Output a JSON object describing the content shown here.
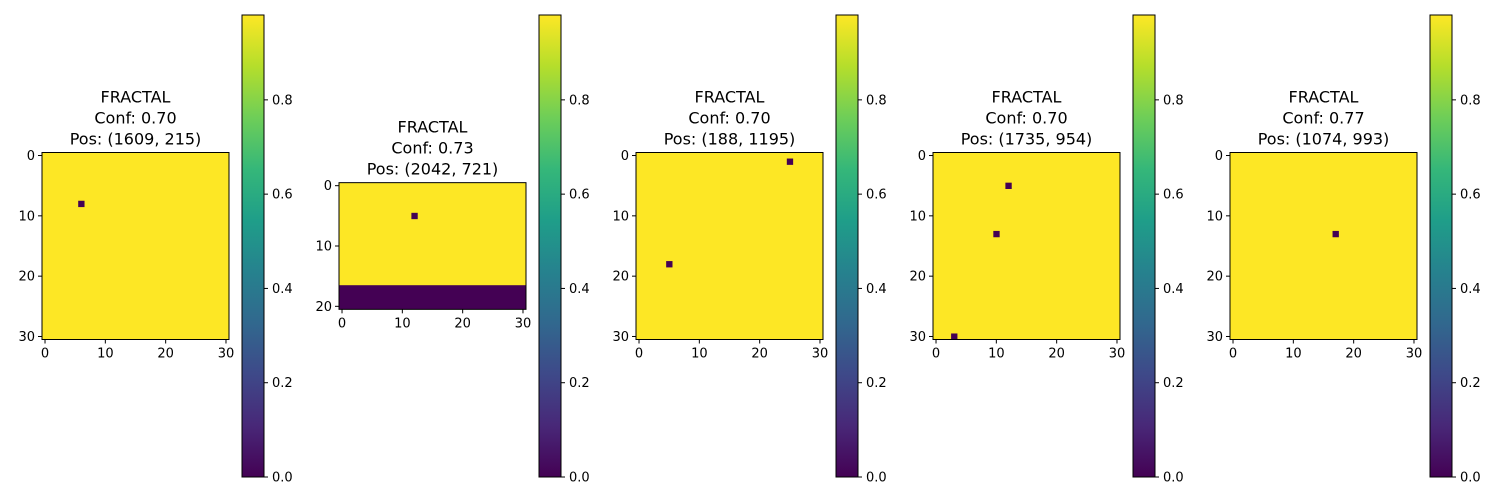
{
  "chart_data": [
    {
      "type": "heatmap",
      "title_lines": [
        "FRACTAL",
        "Conf: 0.70",
        "Pos: (1609, 215)"
      ],
      "label": "FRACTAL",
      "confidence": 0.7,
      "position": [
        1609,
        215
      ],
      "rows": 31,
      "cols": 31,
      "fill_value": 1,
      "zero_cells": [
        {
          "row": 8,
          "col": 6
        }
      ],
      "zero_row_bands": [],
      "xticks": [
        0,
        10,
        20,
        30
      ],
      "yticks": [
        0,
        10,
        20,
        30
      ],
      "colorbar": {
        "min": 0,
        "max": 1,
        "ticks": [
          "0.0",
          "0.2",
          "0.4",
          "0.6",
          "0.8"
        ],
        "colormap": "viridis"
      }
    },
    {
      "type": "heatmap",
      "title_lines": [
        "FRACTAL",
        "Conf: 0.73",
        "Pos: (2042, 721)"
      ],
      "label": "FRACTAL",
      "confidence": 0.73,
      "position": [
        2042,
        721
      ],
      "rows": 21,
      "cols": 31,
      "fill_value": 1,
      "zero_cells": [
        {
          "row": 5,
          "col": 12
        }
      ],
      "zero_row_bands": [
        {
          "from": 17,
          "to": 20
        }
      ],
      "xticks": [
        0,
        10,
        20,
        30
      ],
      "yticks": [
        0,
        10,
        20
      ],
      "colorbar": {
        "min": 0,
        "max": 1,
        "ticks": [
          "0.0",
          "0.2",
          "0.4",
          "0.6",
          "0.8"
        ],
        "colormap": "viridis"
      }
    },
    {
      "type": "heatmap",
      "title_lines": [
        "FRACTAL",
        "Conf: 0.70",
        "Pos: (188, 1195)"
      ],
      "label": "FRACTAL",
      "confidence": 0.7,
      "position": [
        188,
        1195
      ],
      "rows": 31,
      "cols": 31,
      "fill_value": 1,
      "zero_cells": [
        {
          "row": 1,
          "col": 25
        },
        {
          "row": 18,
          "col": 5
        }
      ],
      "zero_row_bands": [],
      "xticks": [
        0,
        10,
        20,
        30
      ],
      "yticks": [
        0,
        10,
        20,
        30
      ],
      "colorbar": {
        "min": 0,
        "max": 1,
        "ticks": [
          "0.0",
          "0.2",
          "0.4",
          "0.6",
          "0.8"
        ],
        "colormap": "viridis"
      }
    },
    {
      "type": "heatmap",
      "title_lines": [
        "FRACTAL",
        "Conf: 0.70",
        "Pos: (1735, 954)"
      ],
      "label": "FRACTAL",
      "confidence": 0.7,
      "position": [
        1735,
        954
      ],
      "rows": 31,
      "cols": 31,
      "fill_value": 1,
      "zero_cells": [
        {
          "row": 5,
          "col": 12
        },
        {
          "row": 13,
          "col": 10
        },
        {
          "row": 30,
          "col": 3
        }
      ],
      "zero_row_bands": [],
      "xticks": [
        0,
        10,
        20,
        30
      ],
      "yticks": [
        0,
        10,
        20,
        30
      ],
      "colorbar": {
        "min": 0,
        "max": 1,
        "ticks": [
          "0.0",
          "0.2",
          "0.4",
          "0.6",
          "0.8"
        ],
        "colormap": "viridis"
      }
    },
    {
      "type": "heatmap",
      "title_lines": [
        "FRACTAL",
        "Conf: 0.77",
        "Pos: (1074, 993)"
      ],
      "label": "FRACTAL",
      "confidence": 0.77,
      "position": [
        1074,
        993
      ],
      "rows": 31,
      "cols": 31,
      "fill_value": 1,
      "zero_cells": [
        {
          "row": 13,
          "col": 17
        }
      ],
      "zero_row_bands": [],
      "xticks": [
        0,
        10,
        20,
        30
      ],
      "yticks": [
        0,
        10,
        20,
        30
      ],
      "colorbar": {
        "min": 0,
        "max": 1,
        "ticks": [
          "0.0",
          "0.2",
          "0.4",
          "0.6",
          "0.8"
        ],
        "colormap": "viridis"
      }
    }
  ],
  "colors": {
    "high": "#fde725",
    "low": "#440154",
    "viridis_stops": [
      "#440154",
      "#482878",
      "#3e4989",
      "#31688e",
      "#26828e",
      "#1f9e89",
      "#35b779",
      "#6ece58",
      "#b5de2b",
      "#fde725"
    ]
  }
}
